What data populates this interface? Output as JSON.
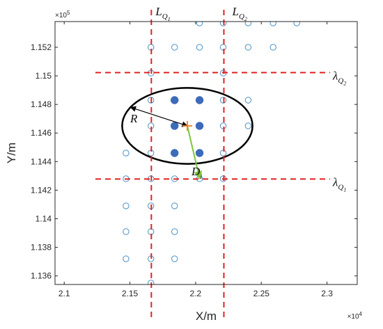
{
  "chart_data": {
    "type": "scatter",
    "xlabel": "X/m",
    "ylabel": "Y/m",
    "x_exponent_label": "×10",
    "x_exponent_power": "4",
    "y_exponent_label": "×10",
    "y_exponent_power": "5",
    "xlim": [
      2.093,
      2.323
    ],
    "ylim": [
      1.1354,
      1.1538
    ],
    "x_ticks": [
      2.1,
      2.15,
      2.2,
      2.25,
      2.3
    ],
    "x_tick_labels": [
      "2.1",
      "2.15",
      "2.2",
      "2.25",
      "2.3"
    ],
    "y_ticks": [
      1.136,
      1.138,
      1.14,
      1.142,
      1.144,
      1.146,
      1.148,
      1.15,
      1.152
    ],
    "y_tick_labels": [
      "1.136",
      "1.138",
      "1.14",
      "1.142",
      "1.144",
      "1.146",
      "1.148",
      "1.15",
      "1.152"
    ],
    "grid": false,
    "box": true,
    "colors": {
      "open_marker": "#4a90c4",
      "filled_marker": "#3c6bb9",
      "dashed_line": "#e02020",
      "circle": "#000000",
      "arrow_R": "#000000",
      "arrow_D": "#7dc43a",
      "center_cross": "#f08020"
    },
    "open_points": [
      [
        2.221,
        1.1537
      ],
      [
        2.203,
        1.1537
      ],
      [
        2.24,
        1.1537
      ],
      [
        2.259,
        1.1537
      ],
      [
        2.277,
        1.1537
      ],
      [
        2.166,
        1.152
      ],
      [
        2.184,
        1.152
      ],
      [
        2.203,
        1.152
      ],
      [
        2.221,
        1.152
      ],
      [
        2.24,
        1.152
      ],
      [
        2.259,
        1.152
      ],
      [
        2.166,
        1.1502
      ],
      [
        2.221,
        1.1502
      ],
      [
        2.166,
        1.1483
      ],
      [
        2.221,
        1.1483
      ],
      [
        2.24,
        1.1483
      ],
      [
        2.166,
        1.1465
      ],
      [
        2.221,
        1.1465
      ],
      [
        2.24,
        1.1465
      ],
      [
        2.147,
        1.1446
      ],
      [
        2.166,
        1.1446
      ],
      [
        2.221,
        1.1446
      ],
      [
        2.147,
        1.1428
      ],
      [
        2.166,
        1.1428
      ],
      [
        2.184,
        1.1428
      ],
      [
        2.203,
        1.1428
      ],
      [
        2.221,
        1.1428
      ],
      [
        2.147,
        1.1409
      ],
      [
        2.166,
        1.1409
      ],
      [
        2.184,
        1.1409
      ],
      [
        2.147,
        1.1391
      ],
      [
        2.166,
        1.1391
      ],
      [
        2.184,
        1.1391
      ],
      [
        2.147,
        1.1372
      ],
      [
        2.166,
        1.1372
      ],
      [
        2.184,
        1.1372
      ],
      [
        2.166,
        1.1355
      ]
    ],
    "filled_points": [
      [
        2.184,
        1.1483
      ],
      [
        2.203,
        1.1483
      ],
      [
        2.184,
        1.1465
      ],
      [
        2.203,
        1.1465
      ],
      [
        2.184,
        1.1446
      ],
      [
        2.203,
        1.1446
      ]
    ],
    "center": [
      2.1937,
      1.1465
    ],
    "circle_radius_x": 0.0496,
    "circle_radius_y": 0.00266,
    "vertical_dashed_x": [
      2.1663,
      2.2215
    ],
    "horizontal_dashed_y": [
      1.15023,
      1.14278
    ],
    "vertical_dashed_labels": [
      {
        "text": "L",
        "sub": "Q",
        "subsub": "1"
      },
      {
        "text": "L",
        "sub": "Q",
        "subsub": "2"
      }
    ],
    "horizontal_dashed_labels": [
      {
        "text": "λ",
        "sub": "Q",
        "subsub": "2"
      },
      {
        "text": "λ",
        "sub": "Q",
        "subsub": "1"
      }
    ],
    "annotations": {
      "R_label": "R",
      "D_label": "D",
      "D_sub": "i",
      "R_arrow_from": [
        2.1937,
        1.1465
      ],
      "R_arrow_to": [
        2.1505,
        1.1478
      ],
      "D_arrow_from": [
        2.1937,
        1.1465
      ],
      "D_arrow_to": [
        2.2031,
        1.1428
      ]
    }
  }
}
